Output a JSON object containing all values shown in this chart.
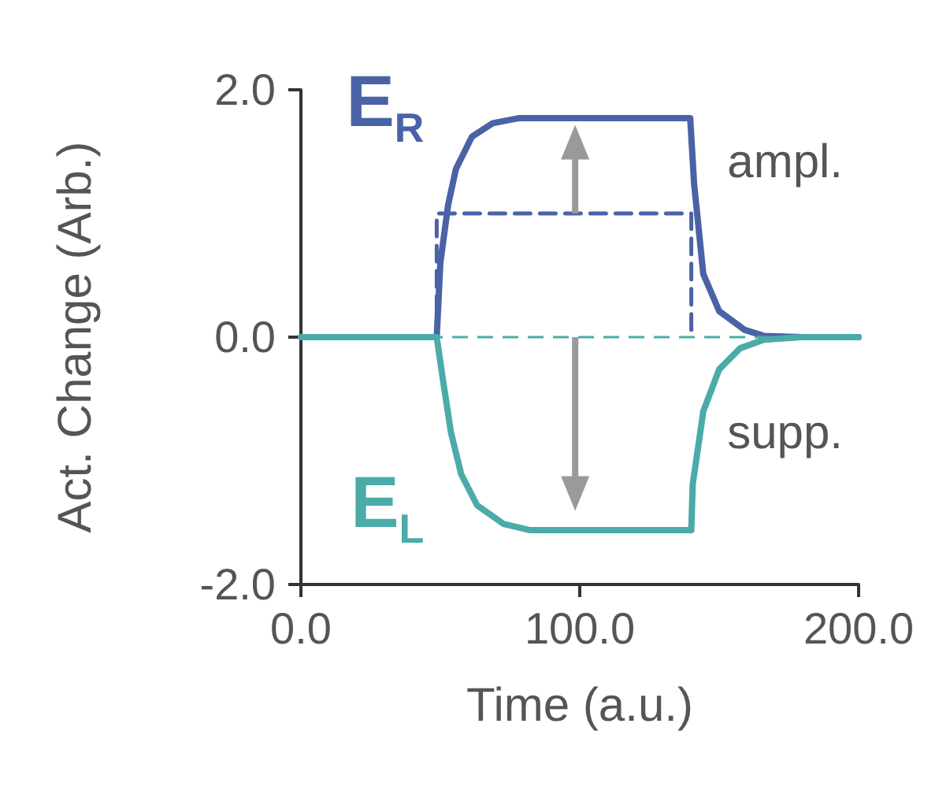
{
  "chart_data": {
    "type": "line",
    "xlabel": "Time (a.u.)",
    "ylabel": "Act. Change (Arb.)",
    "xlim": [
      0,
      200
    ],
    "xticks": [
      {
        "value": 0,
        "label": "0.0"
      },
      {
        "value": 100,
        "label": "100.0"
      },
      {
        "value": 200,
        "label": "200.0"
      }
    ],
    "ylim": [
      -2,
      2
    ],
    "yticks": [
      {
        "value": -2,
        "label": "-2.0"
      },
      {
        "value": 0,
        "label": "0.0"
      },
      {
        "value": 2,
        "label": "2.0"
      }
    ],
    "grid": false,
    "legend": false,
    "marker": "none",
    "series": [
      {
        "name": "E$_{R}$",
        "color": "#4a62a6",
        "line_style": "solid",
        "x": [
          0,
          48.7,
          50,
          52.8,
          55.6,
          61.3,
          68.8,
          78,
          100,
          139.6,
          141,
          144.3,
          150,
          159,
          166,
          180,
          200
        ],
        "values": [
          0,
          0,
          0.6,
          1.07,
          1.36,
          1.62,
          1.73,
          1.77,
          1.77,
          1.77,
          1.24,
          0.51,
          0.21,
          0.06,
          0.01,
          0,
          0
        ]
      },
      {
        "name": "E$_{L}$",
        "color": "#4aaba8",
        "line_style": "solid",
        "x": [
          0,
          48.7,
          50.9,
          53.8,
          57.5,
          63.2,
          72.6,
          82,
          100,
          140,
          140.5,
          144.3,
          150,
          157.5,
          166,
          180,
          200
        ],
        "values": [
          0,
          0,
          -0.34,
          -0.77,
          -1.11,
          -1.36,
          -1.51,
          -1.56,
          -1.56,
          -1.56,
          -1.19,
          -0.6,
          -0.26,
          -0.09,
          -0.02,
          0,
          0
        ]
      },
      {
        "color": "#4a62a6",
        "line_style": "dashed",
        "x": [
          48.7,
          48.7,
          140,
          140
        ],
        "values": [
          0,
          1,
          1,
          0
        ]
      }
    ],
    "ref_lines": [
      {
        "axis": "y",
        "value": 0,
        "color": "#4aaba8",
        "line_style": "dashed"
      }
    ],
    "annotations": [
      "ampl.",
      "supp."
    ]
  }
}
